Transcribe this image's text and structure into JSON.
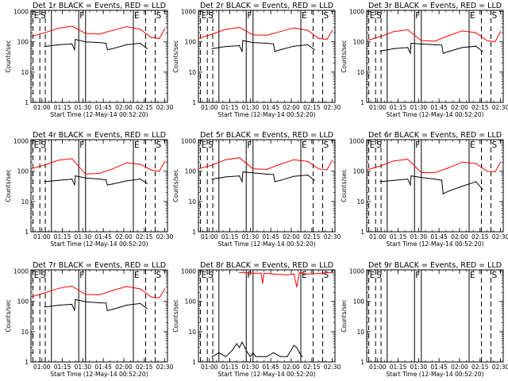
{
  "layout": {
    "cols": 3,
    "rows": 3
  },
  "common": {
    "ylabel": "Counts/sec",
    "xlabel": "Start Time (12-May-14 00:52:20)",
    "x_ticks": [
      "01:00",
      "01:15",
      "01:30",
      "01:45",
      "02:00",
      "02:15",
      "02:30"
    ],
    "x_tick_minutes": [
      8,
      23,
      38,
      53,
      68,
      83,
      98
    ],
    "x_range_minutes": [
      0,
      100
    ],
    "y_ticks": [
      "1",
      "10",
      "100",
      "1000"
    ],
    "y_tick_values": [
      1,
      10,
      100,
      1000
    ],
    "y_range": [
      1,
      1100
    ],
    "y_scale": "log",
    "marker_lines": [
      {
        "label": "E",
        "style": "dashed",
        "minute": 1.5
      },
      {
        "label": "S",
        "style": "dashed",
        "minute": 6.5
      },
      {
        "label": "",
        "style": "dashed",
        "minute": 10.5
      },
      {
        "label": "",
        "style": "solid",
        "minute": 15
      },
      {
        "label": "F",
        "style": "solid",
        "minute": 35
      },
      {
        "label": "",
        "style": "solid",
        "minute": 40
      },
      {
        "label": "E",
        "style": "solid",
        "minute": 75
      },
      {
        "label": "",
        "style": "dashed",
        "minute": 84
      },
      {
        "label": "S",
        "style": "dashed",
        "minute": 91
      }
    ],
    "colors": {
      "events": "#000000",
      "lld": "#ff0000"
    }
  },
  "chart_data": [
    {
      "type": "line",
      "title": "Det 1r BLACK = Events, RED = LLD",
      "series": [
        {
          "color": "#ff0000",
          "x": [
            0,
            10,
            20,
            30,
            40,
            50,
            60,
            70,
            80,
            88,
            94,
            98
          ],
          "y": [
            150,
            200,
            280,
            330,
            190,
            180,
            240,
            320,
            260,
            140,
            130,
            270
          ]
        },
        {
          "color": "#000000",
          "x": [
            10,
            20,
            30,
            32,
            32.5,
            40,
            50,
            55,
            56,
            60,
            70,
            80,
            85
          ],
          "y": [
            70,
            80,
            85,
            55,
            120,
            100,
            95,
            90,
            55,
            60,
            80,
            90,
            60
          ]
        }
      ]
    },
    {
      "type": "line",
      "title": "Det 2r BLACK = Events, RED = LLD",
      "series": [
        {
          "color": "#ff0000",
          "x": [
            0,
            10,
            20,
            30,
            40,
            50,
            60,
            70,
            80,
            88,
            94,
            98
          ],
          "y": [
            130,
            180,
            260,
            300,
            170,
            165,
            220,
            290,
            240,
            130,
            120,
            240
          ]
        },
        {
          "color": "#000000",
          "x": [
            10,
            20,
            30,
            32,
            32.5,
            40,
            50,
            55,
            56,
            60,
            70,
            80,
            85
          ],
          "y": [
            60,
            70,
            75,
            48,
            110,
            95,
            90,
            85,
            48,
            55,
            72,
            80,
            55
          ]
        }
      ]
    },
    {
      "type": "line",
      "title": "Det 3r BLACK = Events, RED = LLD",
      "series": [
        {
          "color": "#ff0000",
          "x": [
            0,
            10,
            20,
            30,
            40,
            50,
            60,
            70,
            80,
            88,
            94,
            98
          ],
          "y": [
            110,
            150,
            220,
            250,
            110,
            105,
            160,
            230,
            200,
            110,
            100,
            220
          ]
        },
        {
          "color": "#000000",
          "x": [
            10,
            20,
            30,
            32,
            32.5,
            40,
            50,
            55,
            56,
            60,
            70,
            80,
            85
          ],
          "y": [
            50,
            60,
            65,
            42,
            90,
            85,
            80,
            78,
            42,
            48,
            65,
            72,
            48
          ]
        }
      ]
    },
    {
      "type": "line",
      "title": "Det 4r BLACK = Events, RED = LLD",
      "series": [
        {
          "color": "#ff0000",
          "x": [
            0,
            10,
            20,
            30,
            40,
            50,
            60,
            70,
            80,
            88,
            94,
            98
          ],
          "y": [
            120,
            160,
            230,
            260,
            80,
            85,
            120,
            190,
            170,
            110,
            100,
            210
          ]
        },
        {
          "color": "#000000",
          "x": [
            10,
            20,
            30,
            32,
            32.5,
            40,
            50,
            55,
            56,
            60,
            70,
            80,
            85
          ],
          "y": [
            45,
            50,
            55,
            35,
            70,
            60,
            55,
            52,
            35,
            38,
            48,
            55,
            40
          ]
        }
      ]
    },
    {
      "type": "line",
      "title": "Det 5r BLACK = Events, RED = LLD",
      "series": [
        {
          "color": "#ff0000",
          "x": [
            0,
            10,
            20,
            30,
            40,
            50,
            60,
            70,
            80,
            88,
            94,
            98
          ],
          "y": [
            120,
            160,
            240,
            280,
            120,
            115,
            170,
            240,
            210,
            120,
            110,
            230
          ]
        },
        {
          "color": "#000000",
          "x": [
            10,
            20,
            30,
            32,
            32.5,
            40,
            50,
            55,
            56,
            60,
            70,
            80,
            85
          ],
          "y": [
            55,
            65,
            70,
            45,
            95,
            88,
            80,
            78,
            45,
            50,
            68,
            75,
            50
          ]
        }
      ]
    },
    {
      "type": "line",
      "title": "Det 6r BLACK = Events, RED = LLD",
      "series": [
        {
          "color": "#ff0000",
          "x": [
            0,
            10,
            20,
            30,
            40,
            50,
            60,
            70,
            80,
            88,
            94,
            98
          ],
          "y": [
            110,
            150,
            220,
            250,
            90,
            90,
            130,
            200,
            180,
            100,
            95,
            200
          ]
        },
        {
          "color": "#000000",
          "x": [
            10,
            20,
            30,
            32,
            32.5,
            40,
            50,
            55,
            56,
            60,
            70,
            80,
            85
          ],
          "y": [
            45,
            50,
            55,
            35,
            70,
            62,
            55,
            50,
            18,
            22,
            32,
            45,
            25
          ]
        }
      ]
    },
    {
      "type": "line",
      "title": "Det 7r BLACK = Events, RED = LLD",
      "series": [
        {
          "color": "#ff0000",
          "x": [
            0,
            10,
            20,
            30,
            40,
            50,
            60,
            70,
            80,
            88,
            94,
            98
          ],
          "y": [
            140,
            190,
            270,
            320,
            170,
            165,
            230,
            310,
            260,
            140,
            130,
            260
          ]
        },
        {
          "color": "#000000",
          "x": [
            10,
            20,
            30,
            32,
            32.5,
            40,
            50,
            55,
            56,
            60,
            70,
            80,
            85
          ],
          "y": [
            65,
            75,
            80,
            50,
            115,
            98,
            90,
            88,
            50,
            55,
            75,
            85,
            58
          ]
        }
      ]
    },
    {
      "type": "line",
      "title": "Det 8r BLACK = Events, RED = LLD",
      "series": [
        {
          "color": "#ff0000",
          "x": [
            30,
            40,
            46,
            47,
            48,
            55,
            65,
            70,
            72,
            74,
            76,
            80,
            90,
            98
          ],
          "y": [
            900,
            850,
            850,
            400,
            850,
            800,
            750,
            800,
            300,
            900,
            850,
            800,
            850,
            900
          ]
        },
        {
          "color": "#000000",
          "x": [
            10,
            15,
            20,
            25,
            28,
            30,
            32,
            34,
            36,
            38,
            40,
            42,
            45,
            50,
            55,
            60,
            65,
            68,
            70,
            72,
            74,
            76
          ],
          "y": [
            1.5,
            2,
            1.5,
            2.5,
            4,
            3,
            4.5,
            3,
            2,
            1.5,
            2,
            1.5,
            1.5,
            1.5,
            2,
            1.5,
            1.5,
            2.5,
            3.5,
            3,
            2,
            1.5
          ]
        }
      ]
    },
    {
      "type": "line",
      "title": "Det 9r BLACK = Events, RED = LLD",
      "series": []
    }
  ]
}
